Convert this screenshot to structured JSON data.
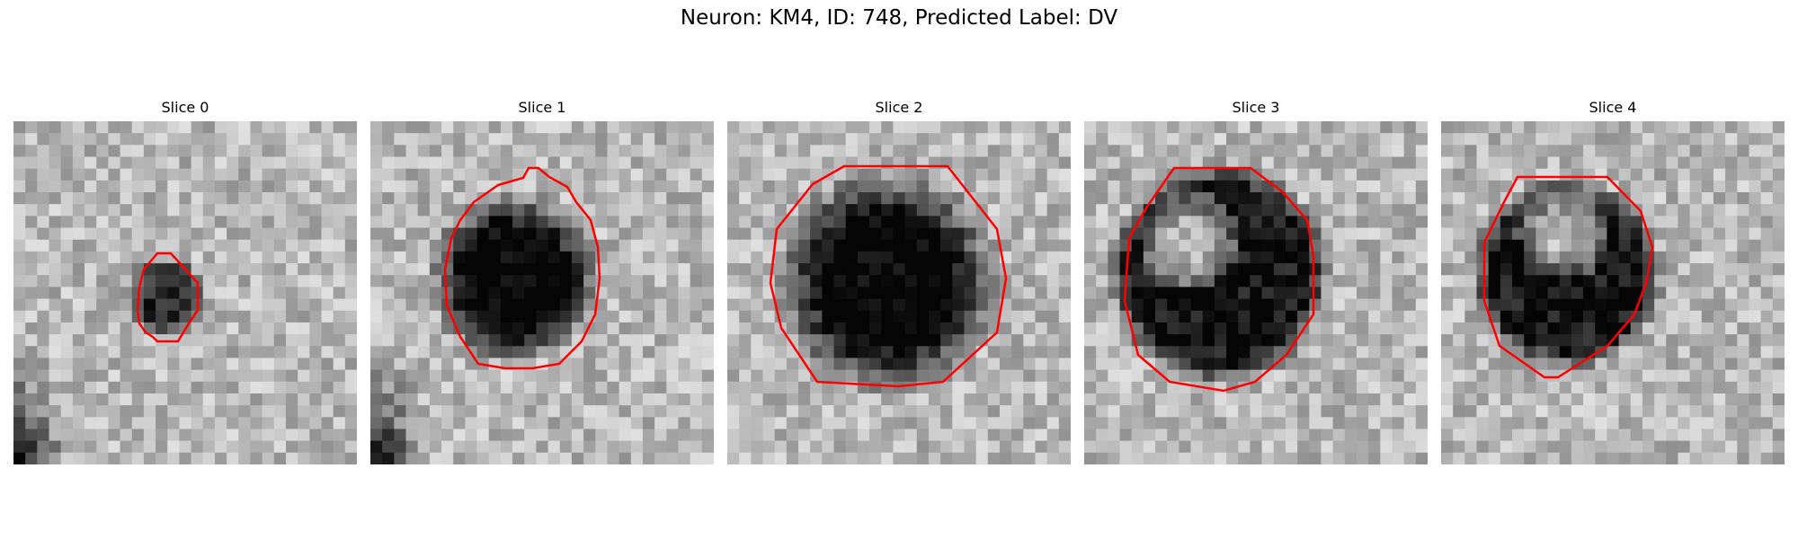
{
  "figure": {
    "title": "Neuron: KM4, ID: 748, Predicted Label: DV",
    "outline_color": "#ff0000"
  },
  "slices": [
    {
      "label": "Slice 0",
      "pattern": "small-dark-spot"
    },
    {
      "label": "Slice 1",
      "pattern": "dark-blob"
    },
    {
      "label": "Slice 2",
      "pattern": "dark-disc"
    },
    {
      "label": "Slice 3",
      "pattern": "dark-ring-light-center"
    },
    {
      "label": "Slice 4",
      "pattern": "dark-ring-light-center"
    }
  ]
}
